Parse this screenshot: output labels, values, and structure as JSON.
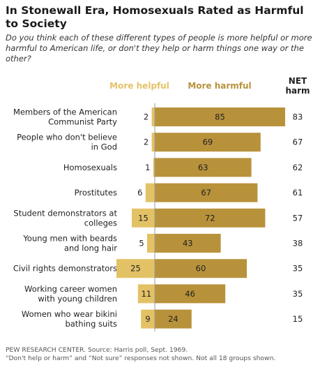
{
  "title": "In Stonewall Era, Homosexuals Rated as Harmful to Society",
  "subtitle": "Do you think each of these different types of people is more helpful or more harmful to American life, or don't they help or harm things one way or the other?",
  "source": "PEW RESEARCH CENTER. Source: Harris poll, Sept. 1969.",
  "note": "“Don't help or harm” and “Not sure” responses not shown. Not all 18 groups shown.",
  "chart_data": {
    "type": "bar",
    "orientation": "horizontal-diverging",
    "legend": {
      "helpful": "More helpful",
      "harmful": "More harmful",
      "net": "NET harm"
    },
    "colors": {
      "helpful": "#e3c266",
      "harmful": "#b8923b",
      "axis": "#999999"
    },
    "categories": [
      "Members of the American Communist Party",
      "People who don't believe in God",
      "Homosexuals",
      "Prostitutes",
      "Student demonstrators at colleges",
      "Young men with beards and long hair",
      "Civil rights demonstrators",
      "Working career women with young children",
      "Women who wear bikini bathing suits"
    ],
    "category_lines": [
      [
        "Members of the American",
        "Communist Party"
      ],
      [
        "People who don't believe",
        "in God"
      ],
      [
        "Homosexuals"
      ],
      [
        "Prostitutes"
      ],
      [
        "Student demonstrators at",
        "colleges"
      ],
      [
        "Young men with beards",
        "and long hair"
      ],
      [
        "Civil rights demonstrators"
      ],
      [
        "Working career women",
        "with young children"
      ],
      [
        "Women who wear bikini",
        "bathing suits"
      ]
    ],
    "series": [
      {
        "name": "More helpful",
        "values": [
          2,
          2,
          1,
          6,
          15,
          5,
          25,
          11,
          9
        ]
      },
      {
        "name": "More harmful",
        "values": [
          85,
          69,
          63,
          67,
          72,
          43,
          60,
          46,
          24
        ]
      },
      {
        "name": "NET harm",
        "values": [
          83,
          67,
          62,
          61,
          57,
          38,
          35,
          35,
          15
        ]
      }
    ]
  }
}
